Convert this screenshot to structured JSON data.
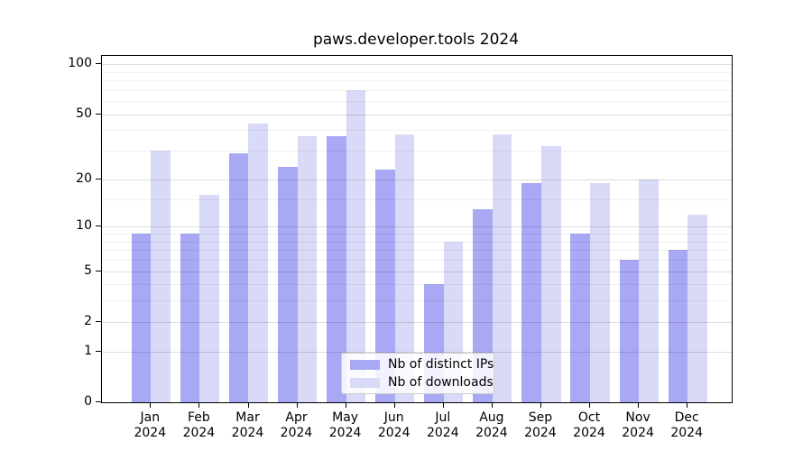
{
  "figure": {
    "title": "paws.developer.tools 2024"
  },
  "chart_data": {
    "type": "bar",
    "title": "paws.developer.tools 2024",
    "categories": [
      "Jan 2024",
      "Feb 2024",
      "Mar 2024",
      "Apr 2024",
      "May 2024",
      "Jun 2024",
      "Jul 2024",
      "Aug 2024",
      "Sep 2024",
      "Oct 2024",
      "Nov 2024",
      "Dec 2024"
    ],
    "x_tick_line1": [
      "Jan",
      "Feb",
      "Mar",
      "Apr",
      "May",
      "Jun",
      "Jul",
      "Aug",
      "Sep",
      "Oct",
      "Nov",
      "Dec"
    ],
    "x_tick_line2": [
      "2024",
      "2024",
      "2024",
      "2024",
      "2024",
      "2024",
      "2024",
      "2024",
      "2024",
      "2024",
      "2024",
      "2024"
    ],
    "series": [
      {
        "name": "Nb of distinct IPs",
        "color": "#a8a8f4",
        "values": [
          9,
          9,
          29,
          24,
          37,
          23,
          4,
          13,
          19,
          9,
          6,
          7
        ]
      },
      {
        "name": "Nb of downloads",
        "color": "#d9d9f8",
        "values": [
          30,
          16,
          44,
          37,
          70,
          38,
          8,
          38,
          32,
          19,
          20,
          12
        ]
      }
    ],
    "xlabel": "",
    "ylabel": "",
    "y_axis": {
      "scale": "log1p",
      "tick_values": [
        0,
        1,
        2,
        5,
        10,
        20,
        50,
        100
      ],
      "tick_labels": [
        "0",
        "1",
        "2",
        "5",
        "10",
        "20",
        "50",
        "100"
      ],
      "major_gridlines": [
        1,
        2,
        5,
        10,
        20,
        50,
        100
      ],
      "minor_gridlines": [
        3,
        4,
        6,
        7,
        8,
        9,
        15,
        30,
        40,
        60,
        70,
        80,
        90
      ],
      "ylim": [
        0,
        111
      ],
      "grid": "on"
    },
    "legend": {
      "position": "lower center",
      "entries": [
        "Nb of distinct IPs",
        "Nb of downloads"
      ]
    }
  }
}
